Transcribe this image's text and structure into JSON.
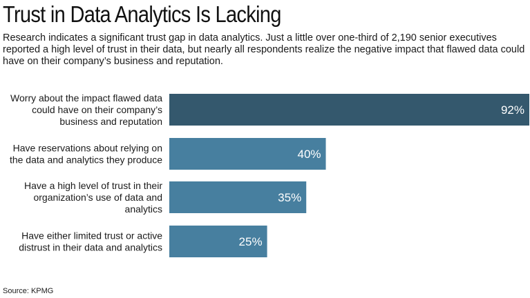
{
  "header": {
    "title": "Trust in Data Analytics Is Lacking",
    "subtitle": "Research indicates a significant trust gap in data analytics. Just a little over one-third of 2,190 senior executives reported a high level of trust in their data, but nearly all respondents realize the negative impact that flawed data could have on their company’s business and reputation."
  },
  "footer": {
    "source": "Source: KPMG"
  },
  "colors": {
    "highlight": "#34586d",
    "bar": "#477f9f",
    "label_text": "#ffffff"
  },
  "chart_data": {
    "type": "bar",
    "orientation": "horizontal",
    "categories": [
      [
        "Worry about the impact flawed data",
        "could have on their company’s",
        "business and reputation"
      ],
      [
        "Have reservations about relying on",
        "the data and analytics they produce"
      ],
      [
        "Have a high level of trust in their",
        "organization’s use of data and",
        "analytics"
      ],
      [
        "Have either limited trust or active",
        "distrust in their data and analytics"
      ]
    ],
    "values": [
      92,
      40,
      35,
      25
    ],
    "value_labels": [
      "92%",
      "40%",
      "35%",
      "25%"
    ],
    "unit": "%",
    "xlim": [
      0,
      92
    ],
    "grid": false,
    "axes_visible": false
  }
}
